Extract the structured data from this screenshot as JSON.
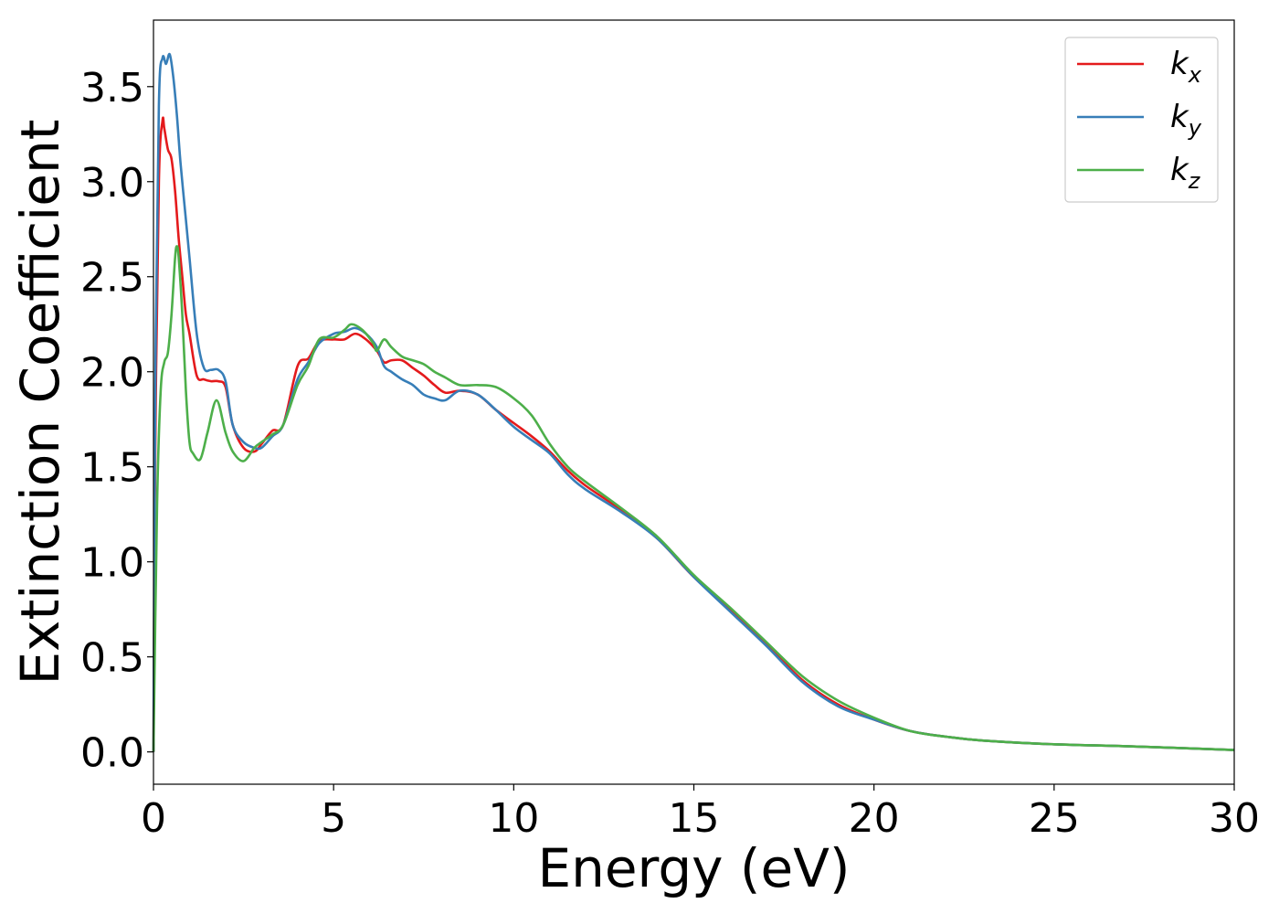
{
  "chart_data": {
    "type": "line",
    "title": "",
    "xlabel": "Energy (eV)",
    "ylabel": "Extinction Coefficient",
    "xlim": [
      0,
      30
    ],
    "ylim": [
      -0.17,
      3.85
    ],
    "xticks": [
      0,
      5,
      10,
      15,
      20,
      25,
      30
    ],
    "xtick_labels": [
      "0",
      "5",
      "10",
      "15",
      "20",
      "25",
      "30"
    ],
    "yticks": [
      0.0,
      0.5,
      1.0,
      1.5,
      2.0,
      2.5,
      3.0,
      3.5
    ],
    "ytick_labels": [
      "0.0",
      "0.5",
      "1.0",
      "1.5",
      "2.0",
      "2.5",
      "3.0",
      "3.5"
    ],
    "grid": false,
    "legend_position": "top-right",
    "series": [
      {
        "name": "k_x",
        "legend_main": "k",
        "legend_sub": "x",
        "color": "#e41a1c",
        "x": [
          0,
          0.05,
          0.15,
          0.25,
          0.3,
          0.4,
          0.5,
          0.6,
          0.7,
          0.8,
          0.9,
          1.0,
          1.2,
          1.4,
          1.6,
          1.8,
          2.0,
          2.2,
          2.5,
          2.8,
          3.0,
          3.3,
          3.6,
          4.0,
          4.3,
          4.6,
          5.0,
          5.3,
          5.6,
          5.9,
          6.2,
          6.4,
          6.6,
          6.9,
          7.2,
          7.5,
          7.8,
          8.1,
          8.5,
          9.0,
          9.5,
          10.0,
          10.5,
          11.0,
          11.5,
          12.0,
          13.0,
          14.0,
          15.0,
          16.0,
          17.0,
          18.0,
          19.0,
          20.0,
          21.0,
          22.0,
          23.0,
          25.0,
          27.0,
          30.0
        ],
        "values": [
          0.0,
          1.6,
          3.0,
          3.32,
          3.28,
          3.17,
          3.12,
          2.95,
          2.7,
          2.5,
          2.3,
          2.2,
          1.98,
          1.96,
          1.95,
          1.95,
          1.92,
          1.72,
          1.6,
          1.58,
          1.62,
          1.69,
          1.72,
          2.03,
          2.07,
          2.16,
          2.17,
          2.17,
          2.2,
          2.17,
          2.11,
          2.05,
          2.06,
          2.06,
          2.02,
          1.98,
          1.93,
          1.89,
          1.9,
          1.88,
          1.8,
          1.73,
          1.66,
          1.58,
          1.48,
          1.4,
          1.27,
          1.12,
          0.92,
          0.75,
          0.57,
          0.38,
          0.25,
          0.17,
          0.11,
          0.08,
          0.06,
          0.04,
          0.03,
          0.01
        ]
      },
      {
        "name": "k_y",
        "legend_main": "k",
        "legend_sub": "y",
        "color": "#377eb8",
        "x": [
          0,
          0.05,
          0.15,
          0.25,
          0.35,
          0.45,
          0.55,
          0.65,
          0.75,
          0.9,
          1.0,
          1.2,
          1.4,
          1.6,
          1.8,
          2.0,
          2.2,
          2.5,
          2.8,
          3.0,
          3.3,
          3.6,
          4.0,
          4.3,
          4.6,
          5.0,
          5.3,
          5.6,
          5.9,
          6.2,
          6.4,
          6.6,
          6.9,
          7.2,
          7.5,
          7.8,
          8.1,
          8.5,
          9.0,
          9.5,
          10.0,
          10.5,
          11.0,
          11.5,
          12.0,
          13.0,
          14.0,
          15.0,
          16.0,
          17.0,
          18.0,
          19.0,
          20.0,
          21.0,
          22.0,
          23.0,
          25.0,
          27.0,
          30.0
        ],
        "values": [
          0.0,
          1.9,
          3.4,
          3.65,
          3.62,
          3.67,
          3.55,
          3.35,
          3.1,
          2.8,
          2.6,
          2.2,
          2.02,
          2.01,
          2.01,
          1.95,
          1.72,
          1.63,
          1.6,
          1.6,
          1.66,
          1.72,
          1.96,
          2.05,
          2.15,
          2.2,
          2.21,
          2.23,
          2.2,
          2.13,
          2.03,
          2.0,
          1.96,
          1.93,
          1.88,
          1.86,
          1.85,
          1.9,
          1.88,
          1.8,
          1.71,
          1.64,
          1.57,
          1.46,
          1.38,
          1.26,
          1.12,
          0.92,
          0.74,
          0.56,
          0.37,
          0.24,
          0.17,
          0.11,
          0.08,
          0.06,
          0.04,
          0.03,
          0.01
        ]
      },
      {
        "name": "k_z",
        "legend_main": "k",
        "legend_sub": "z",
        "color": "#4daf4a",
        "x": [
          0,
          0.1,
          0.2,
          0.3,
          0.4,
          0.5,
          0.6,
          0.65,
          0.7,
          0.8,
          0.9,
          1.0,
          1.1,
          1.3,
          1.5,
          1.75,
          2.0,
          2.2,
          2.5,
          2.8,
          3.0,
          3.3,
          3.6,
          4.0,
          4.3,
          4.6,
          5.0,
          5.3,
          5.5,
          5.8,
          6.1,
          6.2,
          6.4,
          6.6,
          6.9,
          7.2,
          7.5,
          7.8,
          8.1,
          8.5,
          9.0,
          9.5,
          10.0,
          10.5,
          11.0,
          11.5,
          12.0,
          13.0,
          14.0,
          15.0,
          16.0,
          17.0,
          18.0,
          19.0,
          20.0,
          21.0,
          22.0,
          23.0,
          25.0,
          27.0,
          30.0
        ],
        "values": [
          0.0,
          1.3,
          1.9,
          2.05,
          2.1,
          2.3,
          2.6,
          2.66,
          2.6,
          2.3,
          1.9,
          1.63,
          1.57,
          1.54,
          1.68,
          1.85,
          1.68,
          1.58,
          1.53,
          1.6,
          1.63,
          1.67,
          1.72,
          1.93,
          2.03,
          2.17,
          2.18,
          2.22,
          2.25,
          2.22,
          2.15,
          2.11,
          2.17,
          2.13,
          2.08,
          2.06,
          2.04,
          2.0,
          1.97,
          1.93,
          1.93,
          1.92,
          1.86,
          1.77,
          1.62,
          1.5,
          1.42,
          1.28,
          1.13,
          0.93,
          0.76,
          0.58,
          0.4,
          0.27,
          0.18,
          0.11,
          0.08,
          0.06,
          0.04,
          0.03,
          0.01
        ]
      }
    ]
  }
}
